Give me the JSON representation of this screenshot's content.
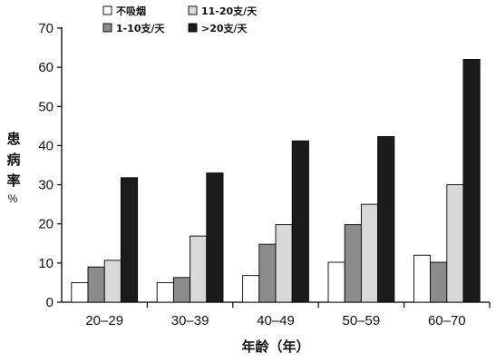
{
  "chart_data": {
    "type": "bar",
    "title": "",
    "xlabel": "年龄（年）",
    "ylabel": "患病率%",
    "categories": [
      "20–29",
      "30–39",
      "40–49",
      "50–59",
      "60–70"
    ],
    "ylim": [
      0,
      70
    ],
    "yticks": [
      0,
      10,
      20,
      30,
      40,
      50,
      60,
      70
    ],
    "grid": false,
    "legend_position": "top-left",
    "series": [
      {
        "name": "不吸烟",
        "color": "#ffffff",
        "values": [
          5,
          5,
          6.8,
          10.2,
          12
        ]
      },
      {
        "name": "1-10支/天",
        "color": "#8c8c8c",
        "values": [
          9,
          6.3,
          14.8,
          19.8,
          10.2
        ]
      },
      {
        "name": "11-20支/天",
        "color": "#d9d9d9",
        "values": [
          10.7,
          16.9,
          19.8,
          25,
          30
        ]
      },
      {
        "name": ">20支/天",
        "color": "#1c1c1c",
        "values": [
          31.8,
          33,
          41.2,
          42.3,
          62
        ]
      }
    ]
  }
}
